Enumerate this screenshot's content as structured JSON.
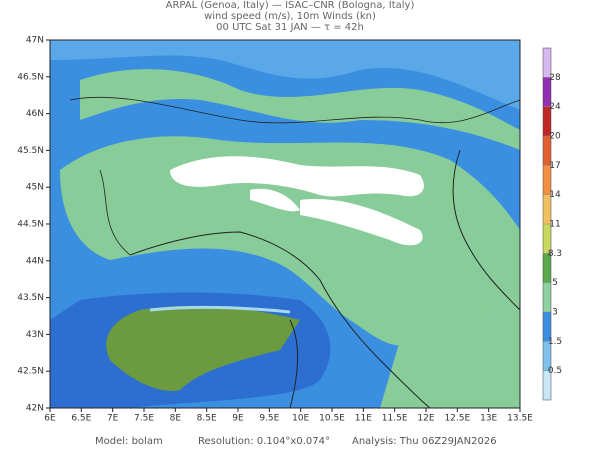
{
  "header": {
    "line1": "ARPAL (Genoa, Italy)  —  ISAC–CNR (Bologna, Italy)",
    "line2": "wind speed (m/s), 10m Winds (kn)",
    "line3": "00 UTC Sat 31 JAN  —  τ = 42h"
  },
  "map": {
    "lat_ticks": [
      {
        "value": 42,
        "label": "42N"
      },
      {
        "value": 42.5,
        "label": "42.5N"
      },
      {
        "value": 43,
        "label": "43N"
      },
      {
        "value": 43.5,
        "label": "43.5N"
      },
      {
        "value": 44,
        "label": "44N"
      },
      {
        "value": 44.5,
        "label": "44.5N"
      },
      {
        "value": 45,
        "label": "45N"
      },
      {
        "value": 45.5,
        "label": "45.5N"
      },
      {
        "value": 46,
        "label": "46N"
      },
      {
        "value": 46.5,
        "label": "46.5N"
      },
      {
        "value": 47,
        "label": "47N"
      }
    ],
    "lon_ticks": [
      {
        "value": 6,
        "label": "6E"
      },
      {
        "value": 6.5,
        "label": "6.5E"
      },
      {
        "value": 7,
        "label": "7E"
      },
      {
        "value": 7.5,
        "label": "7.5E"
      },
      {
        "value": 8,
        "label": "8E"
      },
      {
        "value": 8.5,
        "label": "8.5E"
      },
      {
        "value": 9,
        "label": "9E"
      },
      {
        "value": 9.5,
        "label": "9.5E"
      },
      {
        "value": 10,
        "label": "10E"
      },
      {
        "value": 10.5,
        "label": "10.5E"
      },
      {
        "value": 11,
        "label": "11E"
      },
      {
        "value": 11.5,
        "label": "11.5E"
      },
      {
        "value": 12,
        "label": "12E"
      },
      {
        "value": 12.5,
        "label": "12.5E"
      },
      {
        "value": 13,
        "label": "13E"
      },
      {
        "value": 13.5,
        "label": "13.5E"
      }
    ],
    "lat_range": [
      42,
      47
    ],
    "lon_range": [
      6,
      13.5
    ]
  },
  "colorbar": {
    "levels": [
      0.5,
      1.5,
      3,
      5,
      8.3,
      11,
      14,
      17,
      20,
      24,
      28
    ],
    "colors": [
      "#c8e6f5",
      "#7fc0ec",
      "#3a8fe0",
      "#8fd0a0",
      "#5aa84a",
      "#c8d860",
      "#f0c060",
      "#f09040",
      "#e06030",
      "#c02828",
      "#9030b0",
      "#d8b8f0"
    ]
  },
  "footer": {
    "model": "Model: bolam",
    "resolution": "Resolution: 0.104°x0.074°",
    "analysis": "Analysis: Thu 06Z29JAN2026"
  }
}
